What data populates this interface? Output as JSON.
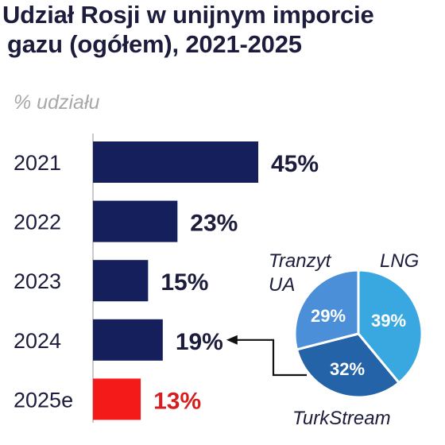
{
  "title_line1": "Udział Rosji w unijnym imporcie",
  "title_line2": "gazu (ogółem), 2021-2025",
  "unit_label": "% udziału",
  "chart_data": [
    {
      "type": "bar",
      "orientation": "horizontal",
      "categories": [
        "2021",
        "2022",
        "2023",
        "2024",
        "2025e"
      ],
      "values": [
        45,
        23,
        15,
        19,
        13
      ],
      "value_labels": [
        "45%",
        "23%",
        "15%",
        "19%",
        "13%"
      ],
      "highlight_category": "2025e",
      "xlim": [
        0,
        50
      ],
      "grid": false,
      "colors": {
        "bar": "#141f5c",
        "highlight": "#f41a1a",
        "label": "#1c1c3c",
        "highlight_label": "#d61e1e"
      }
    },
    {
      "type": "pie",
      "applies_to": "2024",
      "slices": [
        {
          "name": "LNG",
          "value": 39,
          "label": "39%",
          "color": "#3aa8e0"
        },
        {
          "name": "TurkStream",
          "value": 32,
          "label": "32%",
          "color": "#2563a8"
        },
        {
          "name": "Tranzyt UA",
          "value": 29,
          "label": "29%",
          "color": "#4b8fd9"
        }
      ],
      "legend": "labels-around",
      "colors": {
        "stroke": "#ffffff",
        "pointer": "#111111"
      }
    }
  ]
}
